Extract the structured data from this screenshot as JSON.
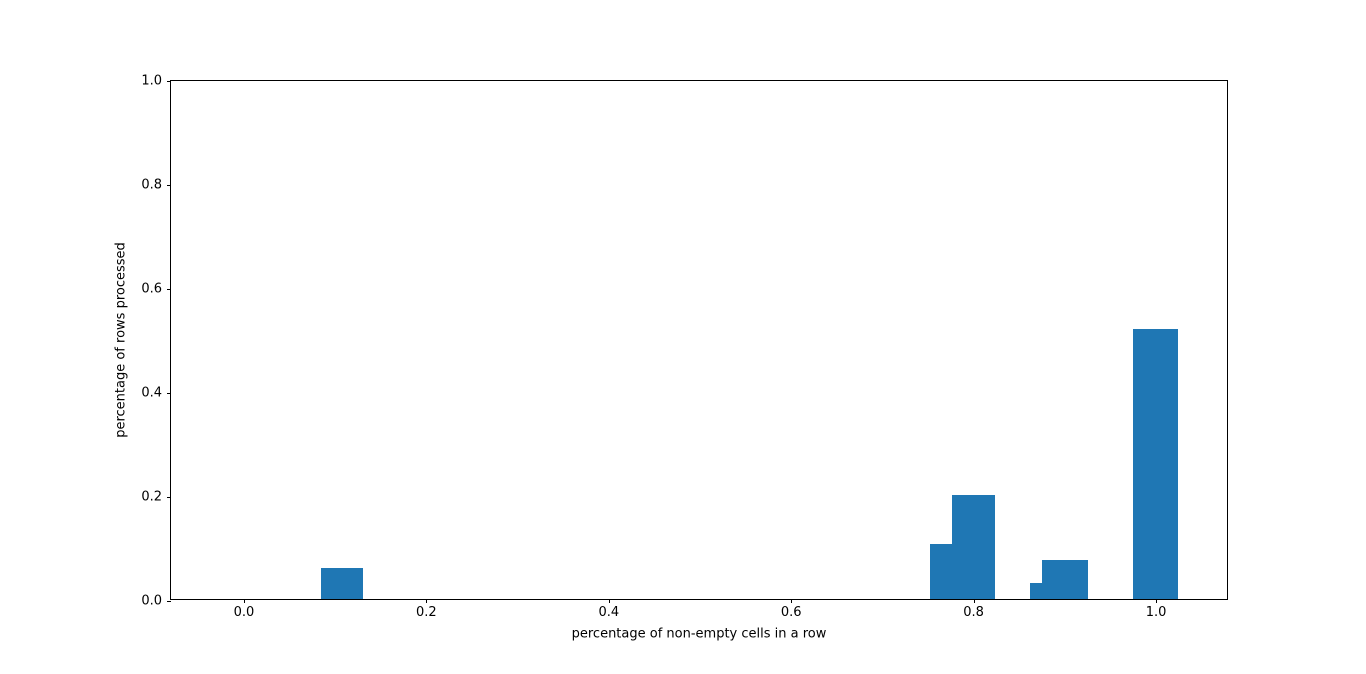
{
  "chart_data": {
    "type": "bar",
    "title": "",
    "xlabel": "percentage of non-empty cells in a row",
    "ylabel": "percentage of rows processed",
    "xlim": [
      -0.08,
      1.08
    ],
    "ylim": [
      0,
      1.0
    ],
    "grid": false,
    "legend_position": "none",
    "bar_color": "#1f77b4",
    "x_ticks": [
      {
        "value": 0.0,
        "label": "0.0"
      },
      {
        "value": 0.2,
        "label": "0.2"
      },
      {
        "value": 0.4,
        "label": "0.4"
      },
      {
        "value": 0.6,
        "label": "0.6"
      },
      {
        "value": 0.8,
        "label": "0.8"
      },
      {
        "value": 1.0,
        "label": "1.0"
      }
    ],
    "y_ticks": [
      {
        "value": 0.0,
        "label": "0.0"
      },
      {
        "value": 0.2,
        "label": "0.2"
      },
      {
        "value": 0.4,
        "label": "0.4"
      },
      {
        "value": 0.6,
        "label": "0.6"
      },
      {
        "value": 0.8,
        "label": "0.8"
      },
      {
        "value": 1.0,
        "label": "1.0"
      }
    ],
    "bars": [
      {
        "x_start": 0.085,
        "x_end": 0.131,
        "height": 0.06
      },
      {
        "x_start": 0.752,
        "x_end": 0.776,
        "height": 0.105
      },
      {
        "x_start": 0.776,
        "x_end": 0.823,
        "height": 0.2
      },
      {
        "x_start": 0.862,
        "x_end": 0.875,
        "height": 0.03
      },
      {
        "x_start": 0.875,
        "x_end": 0.925,
        "height": 0.075
      },
      {
        "x_start": 0.975,
        "x_end": 1.024,
        "height": 0.52
      }
    ]
  }
}
